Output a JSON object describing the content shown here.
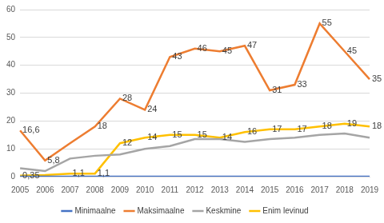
{
  "chart_data": {
    "type": "line",
    "categories": [
      "2005",
      "2006",
      "2007",
      "2008",
      "2009",
      "2010",
      "2011",
      "2012",
      "2013",
      "2014",
      "2015",
      "2016",
      "2017",
      "2018",
      "2019"
    ],
    "series": [
      {
        "name": "Minimaalne",
        "color": "#4472c4",
        "data_labels": false,
        "values": [
          0,
          0,
          0,
          0,
          0,
          0,
          0,
          0,
          0,
          0,
          0,
          0,
          0,
          0,
          0
        ]
      },
      {
        "name": "Maksimaalne",
        "color": "#ed7d31",
        "data_labels": true,
        "values": [
          16.6,
          5.8,
          12,
          18,
          28,
          24,
          43,
          46,
          45,
          47,
          31,
          33,
          55,
          45,
          35
        ],
        "value_labels": [
          "16,6",
          "5,8",
          null,
          "18",
          "28",
          "24",
          "43",
          "46",
          "45",
          "47",
          "31",
          "33",
          "55",
          "45",
          "35"
        ]
      },
      {
        "name": "Keskmine",
        "color": "#a5a5a5",
        "data_labels": false,
        "values": [
          3,
          2,
          6.5,
          7.5,
          8,
          10,
          11,
          13.5,
          13.5,
          12.5,
          13.5,
          14,
          15,
          15.5,
          14
        ]
      },
      {
        "name": "Enim levinud",
        "color": "#ffc000",
        "data_labels": true,
        "values": [
          0.35,
          0.6,
          1.1,
          1.1,
          12,
          14,
          15,
          15,
          14,
          16,
          17,
          17,
          18,
          19,
          18
        ],
        "value_labels": [
          "0,35",
          null,
          "1,1",
          "1,1",
          "12",
          "14",
          "15",
          "15",
          "14",
          "16",
          "17",
          "17",
          "18",
          "19",
          "18"
        ]
      }
    ],
    "ylim": [
      0,
      60
    ],
    "yticks": [
      0,
      10,
      20,
      30,
      40,
      50,
      60
    ],
    "grid": true,
    "legend": "bottom"
  }
}
